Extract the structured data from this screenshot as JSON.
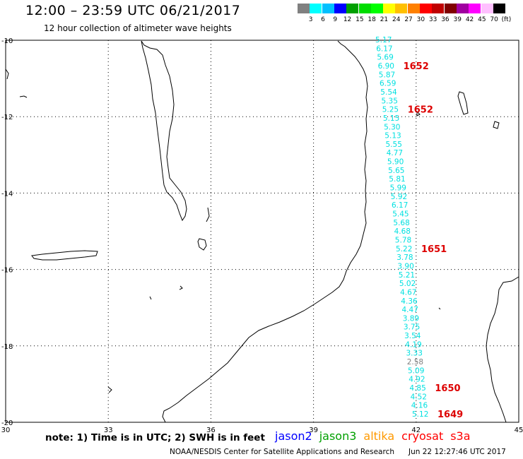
{
  "header": {
    "title": "12:00 – 23:59 UTC 06/21/2017",
    "subtitle": "12 hour collection of altimeter wave heights"
  },
  "colorbar": {
    "colors": [
      "#808080",
      "#00ffff",
      "#00c0ff",
      "#0000ff",
      "#00a000",
      "#00dd00",
      "#00ff00",
      "#ffff00",
      "#ffc000",
      "#ff8000",
      "#ff0000",
      "#c00000",
      "#800000",
      "#a000a0",
      "#ff00ff",
      "#ffc0ff",
      "#000000"
    ],
    "labels": [
      "3",
      "6",
      "9",
      "12",
      "15",
      "18",
      "21",
      "24",
      "27",
      "30",
      "33",
      "36",
      "39",
      "42",
      "45",
      "70",
      "(ft)"
    ]
  },
  "map": {
    "lat_labels": [
      "-10",
      "-12",
      "-14",
      "-16",
      "-18",
      "-20"
    ],
    "lon_labels": [
      "30",
      "33",
      "36",
      "39",
      "42",
      "45"
    ],
    "swh_color": "#00e0e0",
    "swh_low_color": "#808080",
    "swh_values": [
      "5.17",
      "6.17",
      "5.69",
      "6.90",
      "5.87",
      "6.59",
      "5.54",
      "5.35",
      "5.25",
      "5.15",
      "5.30",
      "5.13",
      "5.55",
      "4.77",
      "5.90",
      "5.65",
      "5.81",
      "5.99",
      "5.92",
      "6.17",
      "5.45",
      "5.68",
      "4.68",
      "5.78",
      "5.22",
      "3.78",
      "3.90",
      "5.21",
      "5.02",
      "4.67",
      "4.36",
      "4.47",
      "3.89",
      "3.75",
      "3.54",
      "4.19",
      "3.33",
      "2.58",
      "5.09",
      "4.92",
      "4.85",
      "4.52",
      "4.16",
      "5.12"
    ],
    "time_tags": [
      {
        "text": "1652",
        "after_index": 3
      },
      {
        "text": "1652",
        "after_index": 8
      },
      {
        "text": "1651",
        "after_index": 24
      },
      {
        "text": "1650",
        "after_index": 40
      },
      {
        "text": "1649",
        "after_index": 43
      }
    ],
    "tag_color": "#dd0000"
  },
  "footer": {
    "note": "note: 1) Time is in UTC; 2) SWH is in feet",
    "satellites": [
      {
        "name": "jason2",
        "color": "#0000ff"
      },
      {
        "name": "jason3",
        "color": "#00a000"
      },
      {
        "name": "altika",
        "color": "#ff9900"
      },
      {
        "name": "cryosat",
        "color": "#ff0000"
      },
      {
        "name": "s3a",
        "color": "#ff0000"
      }
    ],
    "credit": "NOAA/NESDIS Center for Satellite Applications and Research",
    "timestamp": "Jun 22 12:27:46 UTC 2017"
  }
}
